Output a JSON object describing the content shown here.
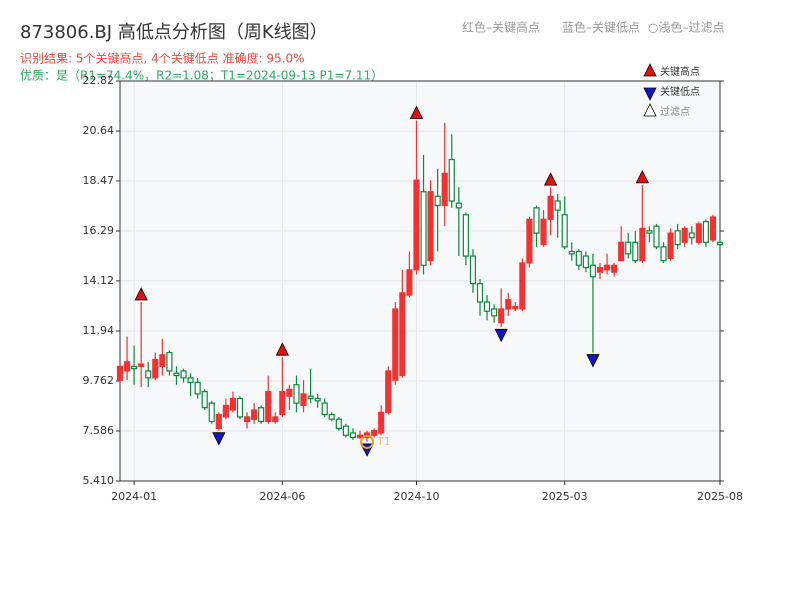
{
  "chart_data": {
    "type": "candlestick",
    "title": "873806.BJ 高低点分析图（周K线图）",
    "top_legend": [
      "红色–关键高点",
      "蓝色–关键低点",
      "○浅色–过滤点"
    ],
    "result_text": "识别结果: 5个关键高点, 4个关键低点  准确度: 95.0%",
    "quality_text": "优质：是（R1=74.4%，R2=1.08；T1=2024-09-13 P1=7.11）",
    "legend": [
      "关键高点",
      "关键低点",
      "过滤点"
    ],
    "categories": [
      null,
      null,
      "2024-01",
      null,
      null,
      null,
      null,
      null,
      null,
      null,
      null,
      null,
      null,
      null,
      null,
      null,
      null,
      null,
      null,
      null,
      null,
      null,
      null,
      "2024-06",
      null,
      null,
      null,
      null,
      null,
      null,
      null,
      null,
      null,
      null,
      null,
      null,
      null,
      null,
      null,
      null,
      null,
      null,
      "2024-10",
      null,
      null,
      null,
      null,
      null,
      null,
      null,
      null,
      null,
      null,
      null,
      null,
      null,
      null,
      null,
      null,
      null,
      null,
      null,
      null,
      "2025-03",
      null,
      null,
      null,
      null,
      null,
      null,
      null,
      null,
      null,
      null,
      null,
      null,
      null,
      null,
      null,
      null,
      null,
      null,
      null,
      null,
      null,
      "2025-08"
    ],
    "open": [
      9.8,
      10.2,
      10.4,
      10.4,
      10.2,
      9.9,
      10.4,
      11.0,
      10.1,
      10.2,
      9.9,
      9.7,
      9.3,
      8.8,
      7.7,
      8.2,
      8.5,
      9.0,
      8.0,
      8.1,
      8.6,
      8.0,
      8.0,
      8.3,
      9.1,
      9.6,
      8.7,
      9.1,
      9.0,
      8.8,
      8.3,
      8.1,
      7.8,
      7.5,
      7.3,
      7.3,
      7.4,
      7.5,
      8.4,
      9.8,
      10.0,
      13.5,
      14.6,
      18.0,
      15.0,
      17.8,
      17.4,
      19.4,
      17.5,
      17.0,
      15.2,
      14.0,
      13.2,
      12.9,
      12.3,
      12.9,
      12.9,
      12.9,
      14.9,
      17.3,
      15.7,
      16.8,
      17.6,
      17.0,
      15.4,
      15.4,
      15.2,
      14.8,
      14.5,
      14.6,
      14.5,
      15.0,
      15.8,
      15.8,
      15.0,
      16.3,
      16.5,
      15.6,
      15.1,
      16.3,
      15.8,
      16.2,
      15.8,
      16.7,
      15.9,
      15.8
    ],
    "high": [
      10.5,
      11.7,
      11.3,
      13.2,
      10.6,
      11.0,
      11.6,
      11.1,
      10.4,
      10.3,
      10.1,
      9.9,
      9.4,
      8.9,
      8.4,
      9.0,
      9.3,
      9.1,
      8.4,
      8.8,
      8.7,
      10.0,
      8.4,
      10.8,
      9.6,
      10.0,
      9.8,
      10.3,
      9.2,
      9.0,
      8.4,
      8.2,
      7.9,
      7.7,
      7.6,
      7.6,
      7.7,
      8.7,
      10.4,
      13.2,
      14.6,
      15.4,
      21.1,
      19.6,
      18.5,
      19.0,
      21.0,
      20.5,
      18.2,
      17.1,
      15.5,
      14.2,
      13.5,
      13.1,
      13.8,
      13.6,
      13.2,
      15.1,
      16.9,
      17.4,
      17.2,
      18.2,
      17.9,
      17.8,
      15.8,
      15.5,
      15.4,
      15.3,
      14.9,
      15.3,
      14.9,
      16.5,
      16.2,
      16.3,
      18.3,
      16.5,
      16.6,
      15.8,
      16.4,
      16.6,
      16.5,
      16.5,
      16.7,
      16.8,
      17.0,
      15.9
    ],
    "low": [
      9.7,
      9.8,
      9.6,
      9.5,
      9.5,
      9.8,
      10.0,
      10.0,
      9.6,
      9.7,
      9.1,
      9.0,
      8.5,
      7.9,
      7.6,
      8.1,
      8.4,
      8.1,
      7.7,
      7.9,
      7.9,
      7.9,
      7.9,
      8.2,
      8.5,
      8.4,
      8.4,
      8.8,
      8.6,
      8.2,
      8.0,
      7.6,
      7.3,
      7.2,
      7.25,
      7.11,
      7.3,
      7.4,
      8.3,
      9.6,
      9.9,
      13.4,
      14.4,
      14.4,
      14.8,
      15.4,
      16.5,
      17.3,
      15.2,
      14.8,
      13.6,
      12.6,
      12.4,
      12.3,
      12.1,
      12.6,
      12.8,
      12.8,
      14.7,
      15.6,
      15.6,
      16.1,
      16.0,
      15.5,
      15.0,
      14.6,
      14.5,
      11.0,
      14.2,
      14.4,
      14.3,
      15.0,
      15.1,
      14.9,
      14.9,
      15.8,
      15.5,
      14.9,
      15.0,
      15.5,
      15.6,
      15.7,
      15.7,
      15.6,
      15.8,
      15.6
    ],
    "close": [
      10.4,
      10.6,
      10.3,
      10.5,
      9.9,
      10.7,
      10.9,
      10.2,
      10.0,
      9.9,
      9.7,
      9.2,
      8.6,
      8.0,
      8.3,
      8.7,
      9.0,
      8.2,
      8.2,
      8.5,
      8.0,
      9.3,
      8.2,
      9.3,
      9.4,
      8.8,
      9.2,
      9.0,
      8.9,
      8.3,
      8.1,
      7.7,
      7.4,
      7.3,
      7.4,
      7.5,
      7.6,
      8.4,
      10.2,
      12.9,
      13.6,
      14.6,
      18.5,
      14.8,
      18.0,
      17.4,
      18.8,
      17.6,
      17.3,
      15.2,
      14.0,
      13.2,
      12.8,
      12.6,
      12.9,
      13.3,
      13.0,
      14.9,
      16.8,
      16.2,
      16.8,
      17.8,
      17.2,
      15.6,
      15.3,
      14.8,
      14.7,
      14.3,
      14.7,
      14.8,
      14.8,
      15.8,
      15.3,
      15.0,
      16.4,
      16.2,
      15.6,
      15.0,
      16.2,
      15.7,
      16.4,
      16.0,
      16.6,
      15.8,
      16.9,
      15.7
    ],
    "key_highs": [
      3,
      23,
      42,
      61,
      74
    ],
    "key_lows": [
      14,
      35,
      54,
      67
    ],
    "t1_index": 35,
    "t1_label": "T1",
    "up_color": "#f03232",
    "down_color": "#0b8a3c",
    "high_marker_color": "#e01010",
    "low_marker_color": "#1414c8",
    "t1_color": "#f39c12",
    "ylim": [
      5.41,
      22.82
    ],
    "yticks": [
      {
        "value": 5.41,
        "label": "5.410"
      },
      {
        "value": 7.586,
        "label": "7.586"
      },
      {
        "value": 9.762,
        "label": "9.762"
      },
      11.94,
      14.12,
      16.29,
      18.47,
      20.64,
      22.82
    ],
    "grid": true
  }
}
